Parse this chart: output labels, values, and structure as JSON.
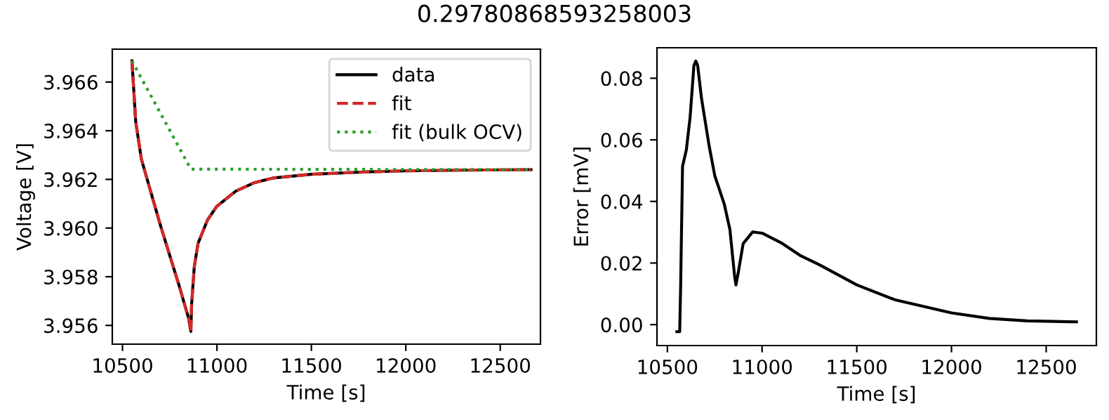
{
  "chart_data": [
    {
      "type": "line",
      "title": "0.29780868593258003",
      "xlabel": "Time [s]",
      "ylabel": "Voltage [V]",
      "xlim": [
        10446,
        12713
      ],
      "xticks": [
        10500,
        11000,
        11500,
        12000,
        12500
      ],
      "ylim": [
        3.95523,
        3.96735
      ],
      "yticks": [
        {
          "value": 3.956,
          "label": "3.956"
        },
        {
          "value": 3.958,
          "label": "3.958"
        },
        {
          "value": 3.96,
          "label": "3.960"
        },
        {
          "value": 3.962,
          "label": "3.962"
        },
        {
          "value": 3.964,
          "label": "3.964"
        },
        {
          "value": 3.966,
          "label": "3.966"
        }
      ],
      "x": [
        10550,
        10570,
        10600,
        10650,
        10700,
        10750,
        10800,
        10850,
        10862,
        10866,
        10880,
        10900,
        10950,
        11000,
        11100,
        11200,
        11300,
        11500,
        11800,
        12000,
        12300,
        12663
      ],
      "series": [
        {
          "name": "data",
          "color": "#000000",
          "line_style": "solid",
          "values": [
            3.96687,
            3.96437,
            3.96283,
            3.96148,
            3.96013,
            3.95888,
            3.95763,
            3.95629,
            3.95575,
            3.95687,
            3.9584,
            3.95937,
            3.96033,
            3.9609,
            3.96152,
            3.96187,
            3.96206,
            3.96221,
            3.96231,
            3.96235,
            3.96238,
            3.9624
          ]
        },
        {
          "name": "fit",
          "color": "#d62728",
          "line_style": "dashed",
          "values": [
            3.96687,
            3.96437,
            3.96283,
            3.96148,
            3.96013,
            3.95888,
            3.95763,
            3.95629,
            3.95575,
            3.95687,
            3.9584,
            3.95937,
            3.96033,
            3.9609,
            3.96152,
            3.96187,
            3.96206,
            3.96221,
            3.96231,
            3.96235,
            3.96238,
            3.9624
          ]
        },
        {
          "name": "fit (bulk OCV)",
          "color": "#2ca02c",
          "line_style": "dotted",
          "x": [
            10550,
            10862,
            12663
          ],
          "values": [
            3.96687,
            3.96242,
            3.9624
          ]
        }
      ],
      "legend": "top right",
      "grid": false
    },
    {
      "type": "line",
      "xlabel": "Time [s]",
      "ylabel": "Error [mV]",
      "xlim": [
        10445,
        12765
      ],
      "xticks": [
        10500,
        11000,
        11500,
        12000,
        12500
      ],
      "ylim": [
        -0.0068,
        0.0899
      ],
      "yticks": [
        {
          "value": 0,
          "label": "0.00"
        },
        {
          "value": 0.02,
          "label": "0.02"
        },
        {
          "value": 0.04,
          "label": "0.04"
        },
        {
          "value": 0.06,
          "label": "0.06"
        },
        {
          "value": 0.08,
          "label": "0.08"
        }
      ],
      "x": [
        10550,
        10565,
        10570,
        10580,
        10600,
        10620,
        10640,
        10650,
        10660,
        10680,
        10720,
        10750,
        10800,
        10830,
        10855,
        10862,
        10875,
        10900,
        10950,
        11000,
        11100,
        11200,
        11300,
        11500,
        11700,
        12000,
        12200,
        12400,
        12660
      ],
      "series": [
        {
          "color": "#000000",
          "values": [
            -0.0023,
            -0.0023,
            0.0126,
            0.0514,
            0.0567,
            0.0674,
            0.0841,
            0.0856,
            0.0841,
            0.0735,
            0.0582,
            0.0484,
            0.0392,
            0.0309,
            0.0157,
            0.0129,
            0.0172,
            0.0263,
            0.0301,
            0.0297,
            0.0266,
            0.0225,
            0.0195,
            0.0129,
            0.0081,
            0.0038,
            0.002,
            0.0012,
            0.0009
          ]
        }
      ],
      "grid": false
    }
  ]
}
